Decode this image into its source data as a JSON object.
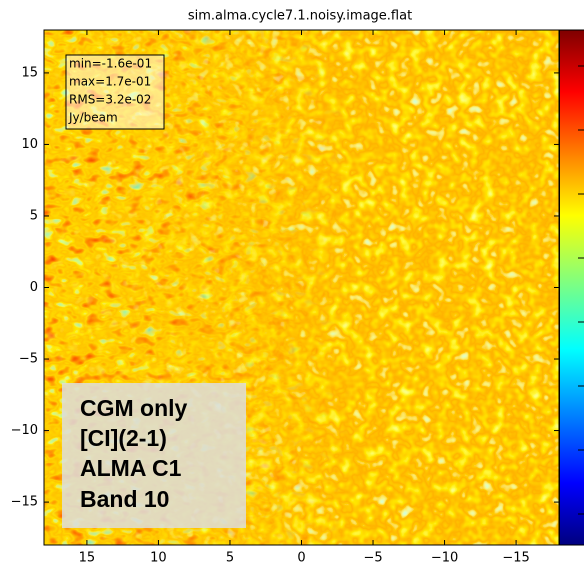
{
  "chart_data": {
    "type": "image",
    "title": "sim.alma.cycle7.1.noisy.image.flat",
    "xlim": [
      18,
      -18
    ],
    "ylim": [
      -18,
      18
    ],
    "xticks": [
      15,
      10,
      5,
      0,
      {
        "value": -5,
        "label": "−5"
      },
      {
        "value": -10,
        "label": "−10"
      },
      {
        "value": -15,
        "label": "−15"
      }
    ],
    "yticks": [
      {
        "value": -15,
        "label": "−15"
      },
      {
        "value": -10,
        "label": "−10"
      },
      {
        "value": -5,
        "label": "−5"
      },
      0,
      5,
      10,
      15
    ],
    "stats": [
      "min=-1.6e-01",
      "max=1.7e-01",
      "RMS=3.2e-02",
      "Jy/beam"
    ],
    "annotation": [
      "CGM only",
      "[CI](2-1)",
      "ALMA C1",
      "Band 10"
    ]
  }
}
